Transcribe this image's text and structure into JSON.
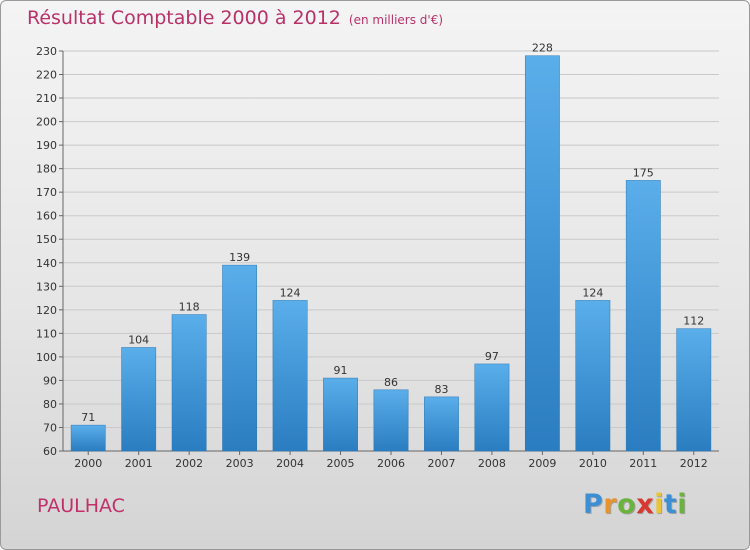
{
  "chart_data": {
    "type": "bar",
    "title": "Résultat Comptable 2000 à 2012",
    "subtitle": "(en milliers d'€)",
    "categories": [
      "2000",
      "2001",
      "2002",
      "2003",
      "2004",
      "2005",
      "2006",
      "2007",
      "2008",
      "2009",
      "2010",
      "2011",
      "2012"
    ],
    "values": [
      71,
      104,
      118,
      139,
      124,
      91,
      86,
      83,
      97,
      228,
      124,
      175,
      112
    ],
    "ylim": [
      60,
      230
    ],
    "yticks": [
      60,
      70,
      80,
      90,
      100,
      110,
      120,
      130,
      140,
      150,
      160,
      170,
      180,
      190,
      200,
      210,
      220,
      230
    ],
    "grid": true,
    "xlabel": "",
    "ylabel": "",
    "bar_color": "#3a8fd3"
  },
  "commune": "PAULHAC",
  "logo": {
    "letters": [
      "P",
      "r",
      "o",
      "x",
      "i",
      "t",
      "i"
    ],
    "colors": [
      "#3d8fd4",
      "#e9932c",
      "#6ab43e",
      "#d9372f",
      "#e9c43a",
      "#3d8fd4",
      "#6ab43e"
    ]
  }
}
